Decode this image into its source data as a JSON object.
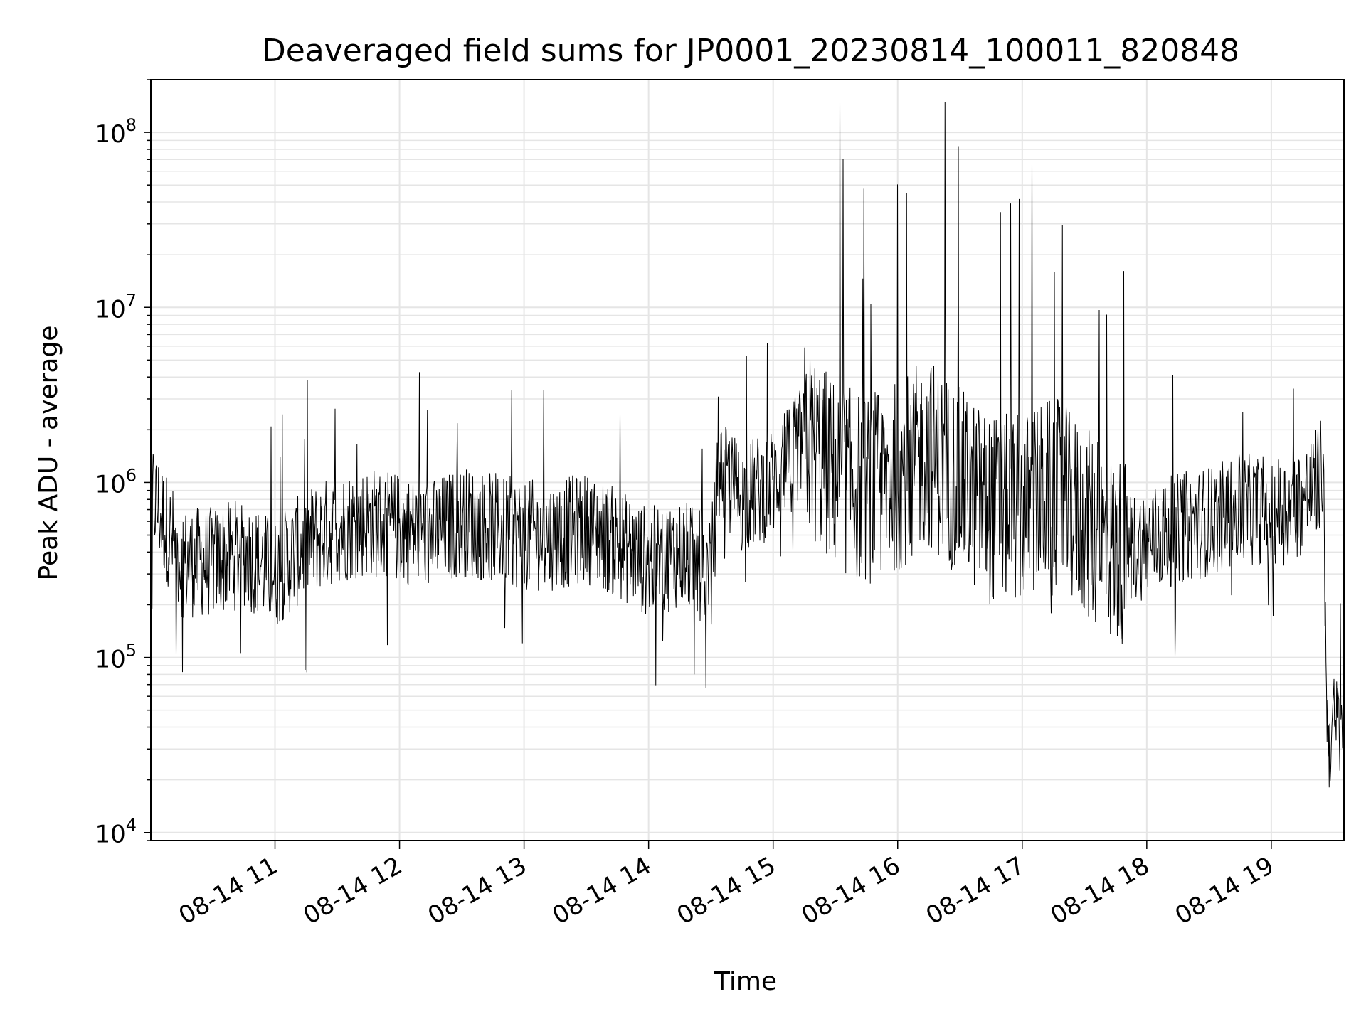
{
  "chart_data": {
    "type": "line",
    "title": "Deaveraged field sums for JP0001_20230814_100011_820848",
    "xlabel": "Time",
    "ylabel": "Peak ADU - average",
    "yscale": "log",
    "ylim": [
      9000,
      200000000
    ],
    "xlim": [
      "2023-08-14 10:00:11",
      "2023-08-14 19:35"
    ],
    "grid": true,
    "line_color": "#000000",
    "grid_color": "#e5e5e5",
    "x_ticks": [
      "08-14 11",
      "08-14 12",
      "08-14 13",
      "08-14 14",
      "08-14 15",
      "08-14 16",
      "08-14 17",
      "08-14 18",
      "08-14 19"
    ],
    "y_ticks": [
      {
        "base": "10",
        "exp": "4",
        "value": 10000
      },
      {
        "base": "10",
        "exp": "5",
        "value": 100000
      },
      {
        "base": "10",
        "exp": "6",
        "value": 1000000
      },
      {
        "base": "10",
        "exp": "7",
        "value": 10000000
      },
      {
        "base": "10",
        "exp": "8",
        "value": 100000000
      }
    ],
    "series": [
      {
        "x": [
          "2023-08-14 10:00",
          "2023-08-14 10:15",
          "2023-08-14 10:30",
          "2023-08-14 10:45",
          "2023-08-14 11:00",
          "2023-08-14 11:15",
          "2023-08-14 11:30",
          "2023-08-14 11:45",
          "2023-08-14 12:00",
          "2023-08-14 12:15",
          "2023-08-14 12:30",
          "2023-08-14 12:45",
          "2023-08-14 13:00",
          "2023-08-14 13:15",
          "2023-08-14 13:30",
          "2023-08-14 13:45",
          "2023-08-14 14:00",
          "2023-08-14 14:15",
          "2023-08-14 14:30",
          "2023-08-14 14:34",
          "2023-08-14 14:45",
          "2023-08-14 15:00",
          "2023-08-14 15:15",
          "2023-08-14 15:30",
          "2023-08-14 15:45",
          "2023-08-14 16:00",
          "2023-08-14 16:15",
          "2023-08-14 16:30",
          "2023-08-14 16:45",
          "2023-08-14 17:00",
          "2023-08-14 17:15",
          "2023-08-14 17:30",
          "2023-08-14 17:45",
          "2023-08-14 18:00",
          "2023-08-14 18:15",
          "2023-08-14 18:30",
          "2023-08-14 18:45",
          "2023-08-14 19:00",
          "2023-08-14 19:10",
          "2023-08-14 19:20",
          "2023-08-14 19:25",
          "2023-08-14 19:27",
          "2023-08-14 19:35"
        ],
        "values": [
          900000,
          350000,
          350000,
          400000,
          300000,
          450000,
          550000,
          600000,
          550000,
          500000,
          600000,
          550000,
          500000,
          500000,
          550000,
          450000,
          350000,
          400000,
          300000,
          1200000,
          800000,
          1000000,
          1800000,
          1100000,
          900000,
          1100000,
          1500000,
          1000000,
          700000,
          700000,
          900000,
          600000,
          400000,
          450000,
          550000,
          600000,
          700000,
          700000,
          700000,
          900000,
          1200000,
          35000,
          45000
        ]
      }
    ]
  }
}
